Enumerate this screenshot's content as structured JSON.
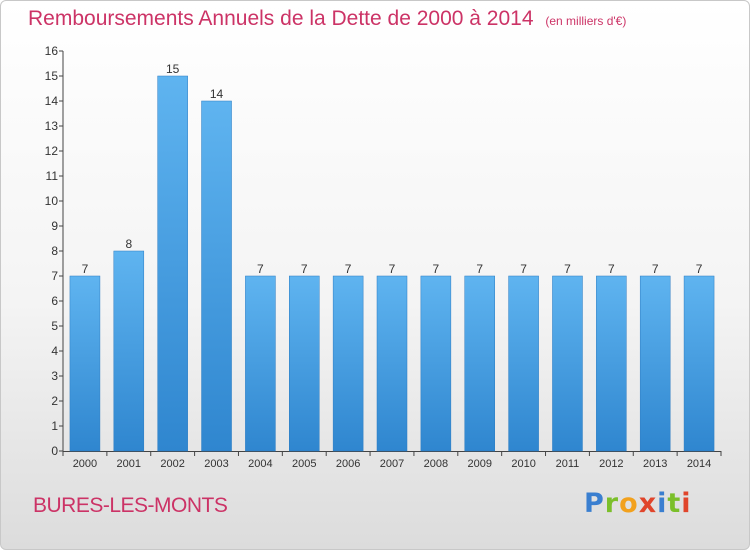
{
  "chart_data": {
    "type": "bar",
    "title": "Remboursements Annuels de la Dette de 2000 à 2014",
    "subtitle": "(en milliers d'€)",
    "categories": [
      "2000",
      "2001",
      "2002",
      "2003",
      "2004",
      "2005",
      "2006",
      "2007",
      "2008",
      "2009",
      "2010",
      "2011",
      "2012",
      "2013",
      "2014"
    ],
    "values": [
      7,
      8,
      15,
      14,
      7,
      7,
      7,
      7,
      7,
      7,
      7,
      7,
      7,
      7,
      7
    ],
    "ylim": [
      0,
      16
    ],
    "yticks": [
      "0",
      "1",
      "2",
      "3",
      "4",
      "5",
      "6",
      "7",
      "8",
      "9",
      "10",
      "11",
      "12",
      "13",
      "14",
      "15",
      "16"
    ],
    "grid": false,
    "bar_color": "#4aa3e6"
  },
  "footer": {
    "commune": "BURES-LES-MONTS"
  },
  "logo": {
    "text": "Proxiti"
  }
}
